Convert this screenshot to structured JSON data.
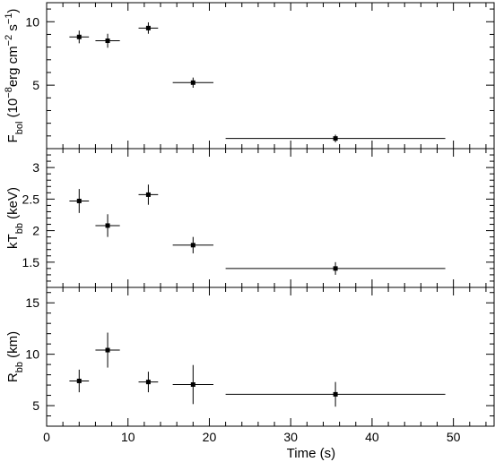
{
  "chart_data": {
    "type": "scatter",
    "xlabel": "Time (s)",
    "xlim": [
      0,
      55
    ],
    "x_ticks": [
      0,
      10,
      20,
      30,
      40,
      50
    ],
    "panels": [
      {
        "name": "flux",
        "ylabel_main": "F",
        "ylabel_sub": "bol",
        "ylabel_rest": " (10",
        "ylabel_exp1": "−8",
        "ylabel_mid1": "erg cm",
        "ylabel_exp2": "−2",
        "ylabel_mid2": " s",
        "ylabel_exp3": "−1",
        "ylabel_end": ")",
        "ylim": [
          0,
          11.5
        ],
        "y_ticks": [
          5,
          10
        ],
        "points": [
          {
            "x": 4.0,
            "xerr": 1.2,
            "y": 8.8,
            "yerr": 0.5
          },
          {
            "x": 7.5,
            "xerr": 1.5,
            "y": 8.5,
            "yerr": 0.55
          },
          {
            "x": 12.5,
            "xerr": 1.2,
            "y": 9.5,
            "yerr": 0.45
          },
          {
            "x": 18.0,
            "xerr": 2.5,
            "y": 5.2,
            "yerr": 0.4
          },
          {
            "x": 35.5,
            "xerr": 13.5,
            "y": 0.8,
            "yerr": 0.3
          }
        ]
      },
      {
        "name": "temperature",
        "ylabel_main": "kT",
        "ylabel_sub": "bb",
        "ylabel_rest": " (keV)",
        "ylim": [
          1.1,
          3.3
        ],
        "y_ticks": [
          1.5,
          2,
          2.5,
          3
        ],
        "y_tick_labels": [
          "1.5",
          "2",
          "2.5",
          "3"
        ],
        "points": [
          {
            "x": 4.0,
            "xerr": 1.2,
            "y": 2.47,
            "yerr": 0.19
          },
          {
            "x": 7.5,
            "xerr": 1.5,
            "y": 2.08,
            "yerr": 0.18
          },
          {
            "x": 12.5,
            "xerr": 1.2,
            "y": 2.57,
            "yerr": 0.16
          },
          {
            "x": 18.0,
            "xerr": 2.5,
            "y": 1.77,
            "yerr": 0.13
          },
          {
            "x": 35.5,
            "xerr": 13.5,
            "y": 1.4,
            "yerr": 0.1
          }
        ]
      },
      {
        "name": "radius",
        "ylabel_main": "R",
        "ylabel_sub": "bb",
        "ylabel_rest": " (km)",
        "ylim": [
          3,
          16.5
        ],
        "y_ticks": [
          5,
          10,
          15
        ],
        "points": [
          {
            "x": 4.0,
            "xerr": 1.2,
            "y": 7.4,
            "yerr": 1.1
          },
          {
            "x": 7.5,
            "xerr": 1.5,
            "y": 10.4,
            "yerr": 1.7
          },
          {
            "x": 12.5,
            "xerr": 1.2,
            "y": 7.3,
            "yerr": 1.0
          },
          {
            "x": 18.0,
            "xerr": 2.5,
            "y": 7.05,
            "yerr": 1.9
          },
          {
            "x": 35.5,
            "xerr": 13.5,
            "y": 6.1,
            "yerr": 1.2
          }
        ]
      }
    ]
  }
}
